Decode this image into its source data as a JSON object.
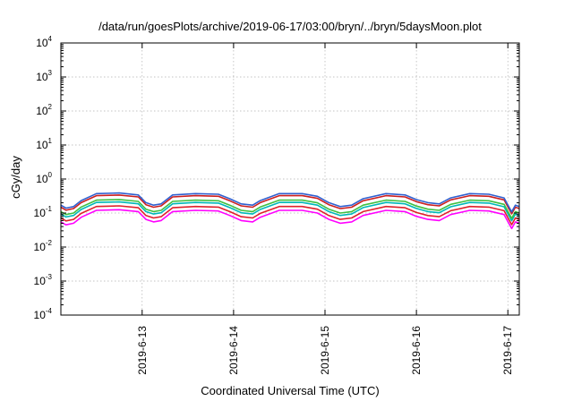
{
  "chart_data": {
    "type": "line",
    "title": "/data/run/goesPlots/archive/2019-06-17/03:00/bryn/../bryn/5daysMoon.plot",
    "xlabel": "Coordinated Universal Time (UTC)",
    "ylabel": "cGy/day",
    "yscale": "log",
    "ylim": [
      0.0001,
      10000
    ],
    "xlim": [
      "2019-06-12T02:40",
      "2019-06-17T03:00"
    ],
    "grid": true,
    "y_ticks": [
      {
        "base": "10",
        "exp": "4"
      },
      {
        "base": "10",
        "exp": "3"
      },
      {
        "base": "10",
        "exp": "2"
      },
      {
        "base": "10",
        "exp": "1"
      },
      {
        "base": "10",
        "exp": "0"
      },
      {
        "base": "10",
        "exp": "-1"
      },
      {
        "base": "10",
        "exp": "-2"
      },
      {
        "base": "10",
        "exp": "-3"
      },
      {
        "base": "10",
        "exp": "-4"
      }
    ],
    "x_ticks": [
      "2019-6-13",
      "2019-6-14",
      "2019-6-15",
      "2019-6-16",
      "2019-6-17"
    ],
    "series": [
      {
        "color": "#ff00ff",
        "level": 0.1
      },
      {
        "color": "#e0202a",
        "level": 0.13
      },
      {
        "color": "#00b8b8",
        "level": 0.17
      },
      {
        "color": "#40c040",
        "level": 0.2
      },
      {
        "color": "#cc2020",
        "level": 0.27
      },
      {
        "color": "#3060d0",
        "level": 0.31
      }
    ],
    "profile": {
      "x": [
        "2019-06-12T02:40",
        "2019-06-12T04:00",
        "2019-06-12T06:00",
        "2019-06-12T08:00",
        "2019-06-12T12:00",
        "2019-06-12T18:00",
        "2019-06-12T23:00",
        "2019-06-13T01:00",
        "2019-06-13T03:00",
        "2019-06-13T05:00",
        "2019-06-13T08:00",
        "2019-06-13T14:00",
        "2019-06-13T20:00",
        "2019-06-13T23:00",
        "2019-06-14T02:00",
        "2019-06-14T05:00",
        "2019-06-14T07:00",
        "2019-06-14T12:00",
        "2019-06-14T18:00",
        "2019-06-14T22:00",
        "2019-06-15T01:00",
        "2019-06-15T04:00",
        "2019-06-15T07:00",
        "2019-06-15T10:00",
        "2019-06-15T16:00",
        "2019-06-15T21:00",
        "2019-06-16T00:00",
        "2019-06-16T03:00",
        "2019-06-16T06:00",
        "2019-06-16T09:00",
        "2019-06-16T14:00",
        "2019-06-16T19:00",
        "2019-06-16T23:00",
        "2019-06-17T01:00",
        "2019-06-17T02:00",
        "2019-06-17T03:00"
      ],
      "factor": [
        0.55,
        0.45,
        0.5,
        0.75,
        1.2,
        1.25,
        1.1,
        0.65,
        0.55,
        0.6,
        1.1,
        1.2,
        1.15,
        0.85,
        0.6,
        0.55,
        0.75,
        1.2,
        1.2,
        1.0,
        0.65,
        0.5,
        0.55,
        0.85,
        1.2,
        1.1,
        0.8,
        0.65,
        0.6,
        0.9,
        1.2,
        1.15,
        0.9,
        0.35,
        0.55,
        0.5
      ]
    }
  }
}
